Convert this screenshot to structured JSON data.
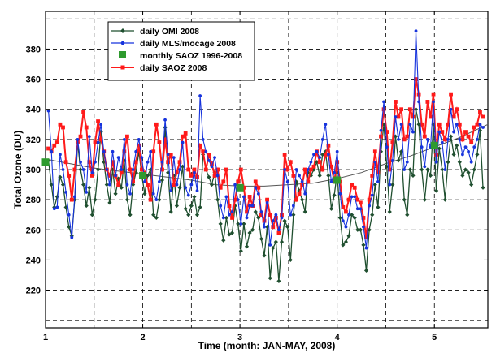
{
  "chart_data": {
    "type": "line",
    "xlabel": "Time (month: JAN-MAY, 2008)",
    "ylabel": "Total Ozone (DU)",
    "xlim": [
      1.0,
      5.55
    ],
    "ylim": [
      195,
      405
    ],
    "x_ticks": [
      1,
      2,
      3,
      4,
      5
    ],
    "y_ticks": [
      220,
      240,
      260,
      280,
      300,
      320,
      340,
      360,
      380
    ],
    "extra_grid_y": [
      200,
      400
    ],
    "extra_grid_x": [
      1.5,
      2.5,
      3.5,
      4.5
    ],
    "grid": true,
    "legend_position": "top-left",
    "colors": {
      "omi": "#1f4f2f",
      "mls": "#1633dd",
      "saoz_monthly": "#2e9a2e",
      "saoz_daily": "#ff1a1a",
      "fit": "#555555"
    },
    "series": [
      {
        "name": "daily OMI 2008",
        "style": "line-diamond",
        "x": [
          1.03,
          1.06,
          1.09,
          1.12,
          1.15,
          1.18,
          1.21,
          1.24,
          1.27,
          1.3,
          1.33,
          1.36,
          1.39,
          1.42,
          1.45,
          1.48,
          1.51,
          1.54,
          1.57,
          1.6,
          1.63,
          1.66,
          1.69,
          1.72,
          1.75,
          1.78,
          1.81,
          1.84,
          1.87,
          1.9,
          1.93,
          1.96,
          1.99,
          2.02,
          2.05,
          2.08,
          2.11,
          2.14,
          2.17,
          2.2,
          2.23,
          2.26,
          2.29,
          2.32,
          2.35,
          2.38,
          2.41,
          2.44,
          2.47,
          2.5,
          2.53,
          2.56,
          2.59,
          2.62,
          2.65,
          2.68,
          2.71,
          2.74,
          2.77,
          2.8,
          2.83,
          2.86,
          2.89,
          2.92,
          2.95,
          2.98,
          3.01,
          3.04,
          3.07,
          3.1,
          3.13,
          3.16,
          3.19,
          3.22,
          3.25,
          3.28,
          3.31,
          3.34,
          3.37,
          3.4,
          3.43,
          3.46,
          3.49,
          3.52,
          3.55,
          3.58,
          3.61,
          3.64,
          3.67,
          3.7,
          3.73,
          3.76,
          3.79,
          3.82,
          3.85,
          3.88,
          3.91,
          3.94,
          3.97,
          4.0,
          4.03,
          4.06,
          4.09,
          4.12,
          4.15,
          4.18,
          4.21,
          4.24,
          4.27,
          4.3,
          4.33,
          4.36,
          4.39,
          4.42,
          4.45,
          4.48,
          4.51,
          4.54,
          4.57,
          4.6,
          4.63,
          4.66,
          4.69,
          4.72,
          4.75,
          4.78,
          4.81,
          4.84,
          4.87,
          4.9,
          4.93,
          4.96,
          4.99,
          5.02,
          5.05,
          5.08,
          5.11,
          5.14,
          5.17,
          5.2,
          5.23,
          5.26,
          5.29,
          5.32,
          5.35,
          5.38,
          5.41,
          5.44,
          5.47,
          5.5
        ],
        "values": [
          306,
          290,
          275,
          282,
          295,
          290,
          275,
          262,
          256,
          280,
          318,
          300,
          290,
          276,
          288,
          270,
          280,
          300,
          325,
          305,
          290,
          278,
          300,
          284,
          294,
          288,
          306,
          280,
          270,
          290,
          298,
          312,
          296,
          284,
          296,
          300,
          270,
          268,
          280,
          293,
          328,
          298,
          272,
          296,
          276,
          288,
          302,
          274,
          270,
          276,
          282,
          270,
          275,
          310,
          300,
          295,
          290,
          298,
          280,
          264,
          253,
          268,
          257,
          258,
          276,
          264,
          246,
          264,
          249,
          258,
          260,
          272,
          268,
          254,
          243,
          262,
          228,
          248,
          252,
          226,
          252,
          266,
          262,
          240,
          270,
          292,
          286,
          280,
          272,
          298,
          296,
          300,
          305,
          296,
          310,
          312,
          296,
          274,
          283,
          298,
          268,
          250,
          252,
          256,
          270,
          268,
          260,
          260,
          250,
          233,
          260,
          270,
          290,
          275,
          312,
          330,
          302,
          272,
          290,
          322,
          306,
          312,
          280,
          270,
          300,
          296,
          340,
          330,
          300,
          280,
          300,
          296,
          330,
          286,
          314,
          300,
          280,
          305,
          322,
          310,
          316,
          305,
          296,
          300,
          298,
          290,
          300,
          310,
          326,
          288
        ]
      },
      {
        "name": "daily MLS/mocage 2008",
        "style": "line-dot",
        "x": [
          1.03,
          1.06,
          1.09,
          1.12,
          1.15,
          1.18,
          1.21,
          1.24,
          1.27,
          1.3,
          1.33,
          1.36,
          1.39,
          1.42,
          1.45,
          1.48,
          1.51,
          1.54,
          1.57,
          1.6,
          1.63,
          1.66,
          1.69,
          1.72,
          1.75,
          1.78,
          1.81,
          1.84,
          1.87,
          1.9,
          1.93,
          1.96,
          1.99,
          2.02,
          2.05,
          2.08,
          2.11,
          2.14,
          2.17,
          2.2,
          2.23,
          2.26,
          2.29,
          2.32,
          2.35,
          2.38,
          2.41,
          2.44,
          2.47,
          2.5,
          2.53,
          2.56,
          2.59,
          2.62,
          2.65,
          2.68,
          2.71,
          2.74,
          2.77,
          2.8,
          2.83,
          2.86,
          2.89,
          2.92,
          2.95,
          2.98,
          3.01,
          3.04,
          3.07,
          3.1,
          3.13,
          3.16,
          3.19,
          3.22,
          3.25,
          3.28,
          3.31,
          3.34,
          3.37,
          3.4,
          3.43,
          3.46,
          3.49,
          3.52,
          3.55,
          3.58,
          3.61,
          3.64,
          3.67,
          3.7,
          3.73,
          3.76,
          3.79,
          3.82,
          3.85,
          3.88,
          3.91,
          3.94,
          3.97,
          4.0,
          4.03,
          4.06,
          4.09,
          4.12,
          4.15,
          4.18,
          4.21,
          4.24,
          4.27,
          4.3,
          4.33,
          4.36,
          4.39,
          4.42,
          4.45,
          4.48,
          4.51,
          4.54,
          4.57,
          4.6,
          4.63,
          4.66,
          4.69,
          4.72,
          4.75,
          4.78,
          4.81,
          4.84,
          4.87,
          4.9,
          4.93,
          4.96,
          4.99,
          5.02,
          5.05,
          5.08,
          5.11,
          5.14,
          5.17,
          5.2,
          5.23,
          5.26,
          5.29,
          5.32,
          5.35,
          5.38,
          5.41,
          5.44,
          5.47,
          5.5
        ],
        "values": [
          339,
          312,
          274,
          275,
          310,
          300,
          285,
          270,
          255,
          282,
          320,
          305,
          300,
          285,
          322,
          298,
          305,
          318,
          330,
          312,
          300,
          290,
          312,
          296,
          308,
          300,
          320,
          290,
          284,
          300,
          312,
          320,
          308,
          292,
          305,
          312,
          284,
          280,
          292,
          305,
          333,
          310,
          286,
          308,
          290,
          300,
          318,
          288,
          283,
          290,
          298,
          286,
          349,
          320,
          312,
          306,
          302,
          308,
          296,
          276,
          268,
          282,
          270,
          272,
          290,
          280,
          264,
          282,
          268,
          276,
          276,
          288,
          284,
          272,
          262,
          278,
          250,
          266,
          270,
          260,
          268,
          300,
          292,
          270,
          276,
          300,
          296,
          292,
          284,
          300,
          305,
          310,
          312,
          308,
          320,
          330,
          310,
          292,
          298,
          312,
          284,
          266,
          262,
          270,
          282,
          282,
          274,
          274,
          262,
          248,
          276,
          283,
          305,
          292,
          326,
          345,
          315,
          290,
          306,
          335,
          320,
          330,
          300,
          305,
          330,
          325,
          392,
          345,
          315,
          302,
          320,
          315,
          345,
          305,
          325,
          318,
          300,
          320,
          340,
          325,
          330,
          320,
          310,
          315,
          312,
          305,
          315,
          320,
          330,
          328
        ]
      },
      {
        "name": "monthly SAOZ 1996-2008",
        "style": "square-markers",
        "x": [
          1.0,
          2.0,
          3.0,
          4.0,
          5.0
        ],
        "values": [
          305,
          296,
          288,
          293,
          316
        ]
      },
      {
        "name": "daily SAOZ 2008",
        "style": "line-square",
        "x": [
          1.03,
          1.06,
          1.09,
          1.12,
          1.15,
          1.18,
          1.21,
          1.24,
          1.27,
          1.3,
          1.33,
          1.36,
          1.39,
          1.42,
          1.45,
          1.48,
          1.51,
          1.54,
          1.57,
          1.6,
          1.63,
          1.66,
          1.69,
          1.72,
          1.75,
          1.78,
          1.81,
          1.84,
          1.87,
          1.9,
          1.93,
          1.96,
          1.99,
          2.02,
          2.05,
          2.08,
          2.11,
          2.14,
          2.17,
          2.2,
          2.23,
          2.26,
          2.29,
          2.32,
          2.35,
          2.38,
          2.41,
          2.44,
          2.47,
          2.5,
          2.53,
          2.56,
          2.59,
          2.62,
          2.65,
          2.68,
          2.71,
          2.74,
          2.77,
          2.8,
          2.83,
          2.86,
          2.89,
          2.92,
          2.95,
          2.98,
          3.01,
          3.04,
          3.07,
          3.1,
          3.13,
          3.16,
          3.19,
          3.22,
          3.25,
          3.28,
          3.31,
          3.34,
          3.37,
          3.4,
          3.43,
          3.46,
          3.49,
          3.52,
          3.55,
          3.58,
          3.61,
          3.64,
          3.67,
          3.7,
          3.73,
          3.76,
          3.79,
          3.82,
          3.85,
          3.88,
          3.91,
          3.94,
          3.97,
          4.0,
          4.03,
          4.06,
          4.09,
          4.12,
          4.15,
          4.18,
          4.21,
          4.24,
          4.27,
          4.3,
          4.33,
          4.36,
          4.39,
          4.42,
          4.45,
          4.48,
          4.51,
          4.54,
          4.57,
          4.6,
          4.63,
          4.66,
          4.69,
          4.72,
          4.75,
          4.78,
          4.81,
          4.84,
          4.87,
          4.9,
          4.93,
          4.96,
          4.99,
          5.02,
          5.05,
          5.08,
          5.11,
          5.14,
          5.17,
          5.2,
          5.23,
          5.26,
          5.29,
          5.32,
          5.35,
          5.38,
          5.41,
          5.44,
          5.47,
          5.5
        ],
        "values": [
          314,
          312,
          316,
          318,
          330,
          328,
          305,
          296,
          280,
          300,
          318,
          322,
          338,
          328,
          305,
          296,
          318,
          332,
          320,
          312,
          300,
          296,
          305,
          296,
          290,
          298,
          312,
          322,
          300,
          292,
          305,
          316,
          300,
          298,
          290,
          280,
          312,
          330,
          318,
          300,
          320,
          305,
          310,
          290,
          298,
          305,
          322,
          324,
          300,
          296,
          300,
          295,
          316,
          312,
          300,
          310,
          304,
          296,
          300,
          288,
          292,
          300,
          276,
          268,
          280,
          292,
          300,
          288,
          272,
          282,
          276,
          292,
          288,
          270,
          266,
          280,
          270,
          262,
          268,
          258,
          270,
          310,
          300,
          305,
          296,
          280,
          284,
          290,
          300,
          292,
          300,
          302,
          312,
          305,
          300,
          310,
          316,
          302,
          292,
          305,
          292,
          275,
          272,
          280,
          290,
          288,
          280,
          278,
          268,
          255,
          280,
          296,
          312,
          298,
          322,
          340,
          325,
          300,
          318,
          345,
          335,
          340,
          320,
          322,
          340,
          335,
          360,
          350,
          330,
          322,
          345,
          335,
          350,
          310,
          330,
          325,
          320,
          330,
          350,
          335,
          340,
          330,
          320,
          325,
          322,
          318,
          328,
          330,
          338,
          335
        ]
      },
      {
        "name": "fit",
        "style": "thin-line",
        "x": [
          1.0,
          1.25,
          1.5,
          1.75,
          2.0,
          2.25,
          2.5,
          2.75,
          3.0,
          3.25,
          3.5,
          3.75,
          4.0,
          4.25,
          4.5,
          4.75,
          5.0,
          5.25,
          5.55
        ],
        "values": [
          307,
          304,
          301,
          299,
          297,
          295,
          293,
          290,
          289,
          289,
          290,
          291,
          294,
          298,
          304,
          309,
          315,
          321,
          330
        ]
      }
    ]
  }
}
